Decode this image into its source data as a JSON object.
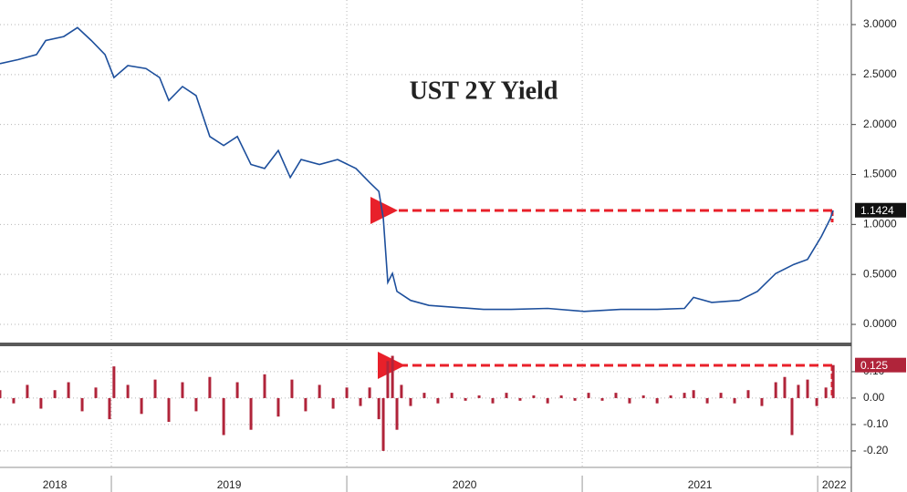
{
  "chart_data": [
    {
      "type": "line",
      "title": "UST 2Y Yield",
      "color": "#1d4f9c",
      "x": [
        2018.527,
        2018.605,
        2018.682,
        2018.721,
        2018.798,
        2018.856,
        2018.915,
        2018.973,
        2019.011,
        2019.07,
        2019.147,
        2019.205,
        2019.244,
        2019.302,
        2019.36,
        2019.418,
        2019.477,
        2019.535,
        2019.593,
        2019.651,
        2019.709,
        2019.76,
        2019.806,
        2019.884,
        2019.961,
        2020.039,
        2020.097,
        2020.136,
        2020.155,
        2020.174,
        2020.194,
        2020.213,
        2020.271,
        2020.349,
        2020.465,
        2020.581,
        2020.698,
        2020.853,
        2021.008,
        2021.163,
        2021.318,
        2021.434,
        2021.473,
        2021.55,
        2021.667,
        2021.744,
        2021.822,
        2021.899,
        2021.957,
        2022.016,
        2022.054,
        2022.066
      ],
      "values": [
        2.61,
        2.65,
        2.7,
        2.84,
        2.88,
        2.97,
        2.84,
        2.7,
        2.47,
        2.59,
        2.56,
        2.47,
        2.24,
        2.38,
        2.29,
        1.88,
        1.79,
        1.88,
        1.6,
        1.56,
        1.74,
        1.47,
        1.65,
        1.6,
        1.65,
        1.56,
        1.42,
        1.33,
        1.06,
        0.42,
        0.51,
        0.33,
        0.24,
        0.19,
        0.17,
        0.15,
        0.15,
        0.16,
        0.13,
        0.15,
        0.15,
        0.16,
        0.27,
        0.22,
        0.24,
        0.33,
        0.51,
        0.6,
        0.65,
        0.88,
        1.06,
        1.14
      ],
      "last_value": 1.1424,
      "xlim": [
        2018.527,
        2022.143
      ],
      "ylim": [
        -0.173,
        3.246
      ],
      "yticks": [
        {
          "value": 0,
          "label": "0.0000"
        },
        {
          "value": 0.5,
          "label": "0.5000"
        },
        {
          "value": 1,
          "label": "1.0000"
        },
        {
          "value": 1.5,
          "label": "1.5000"
        },
        {
          "value": 2,
          "label": "2.0000"
        },
        {
          "value": 2.5,
          "label": "2.5000"
        },
        {
          "value": 3,
          "label": "3.0000"
        }
      ],
      "grid": true
    },
    {
      "type": "bar",
      "color": "#b0243a",
      "x": [
        2018.527,
        2018.585,
        2018.643,
        2018.701,
        2018.76,
        2018.818,
        2018.876,
        2018.934,
        2018.992,
        2019.011,
        2019.07,
        2019.128,
        2019.186,
        2019.244,
        2019.302,
        2019.36,
        2019.418,
        2019.477,
        2019.535,
        2019.593,
        2019.651,
        2019.709,
        2019.767,
        2019.825,
        2019.884,
        2019.942,
        2020.0,
        2020.058,
        2020.097,
        2020.136,
        2020.155,
        2020.174,
        2020.194,
        2020.213,
        2020.232,
        2020.271,
        2020.329,
        2020.387,
        2020.446,
        2020.504,
        2020.562,
        2020.62,
        2020.678,
        2020.736,
        2020.794,
        2020.853,
        2020.911,
        2020.969,
        2021.027,
        2021.085,
        2021.143,
        2021.201,
        2021.26,
        2021.318,
        2021.376,
        2021.434,
        2021.473,
        2021.531,
        2021.589,
        2021.647,
        2021.705,
        2021.763,
        2021.822,
        2021.86,
        2021.891,
        2021.918,
        2021.957,
        2021.996,
        2022.035,
        2022.066
      ],
      "values": [
        0.03,
        -0.02,
        0.05,
        -0.04,
        0.03,
        0.06,
        -0.05,
        0.04,
        -0.08,
        0.12,
        0.05,
        -0.06,
        0.07,
        -0.09,
        0.06,
        -0.05,
        0.08,
        -0.14,
        0.06,
        -0.12,
        0.09,
        -0.07,
        0.07,
        -0.05,
        0.05,
        -0.04,
        0.04,
        -0.03,
        0.04,
        -0.08,
        -0.2,
        0.14,
        0.16,
        -0.12,
        0.05,
        -0.03,
        0.02,
        -0.02,
        0.02,
        -0.01,
        0.01,
        -0.02,
        0.02,
        -0.01,
        0.01,
        -0.02,
        0.01,
        -0.01,
        0.02,
        -0.01,
        0.02,
        -0.02,
        0.01,
        -0.02,
        0.01,
        0.02,
        0.03,
        -0.02,
        0.02,
        -0.02,
        0.03,
        -0.03,
        0.06,
        0.08,
        -0.14,
        0.05,
        0.07,
        -0.03,
        0.04,
        0.125
      ],
      "last_value": 0.125,
      "xlim": [
        2018.527,
        2022.143
      ],
      "ylim": [
        -0.259,
        0.186
      ],
      "yticks": [
        {
          "value": -0.2,
          "label": "-0.20"
        },
        {
          "value": -0.1,
          "label": "-0.10"
        },
        {
          "value": 0,
          "label": "0.00"
        },
        {
          "value": 0.1,
          "label": "0.10"
        }
      ],
      "xticks": [
        {
          "value": 2018.76,
          "label": "2018"
        },
        {
          "value": 2019.5,
          "label": "2019"
        },
        {
          "value": 2020.5,
          "label": "2020"
        },
        {
          "value": 2021.5,
          "label": "2021"
        },
        {
          "value": 2022.07,
          "label": "2022"
        }
      ],
      "year_lines": [
        2019,
        2020,
        2021,
        2022
      ],
      "grid": true
    }
  ]
}
